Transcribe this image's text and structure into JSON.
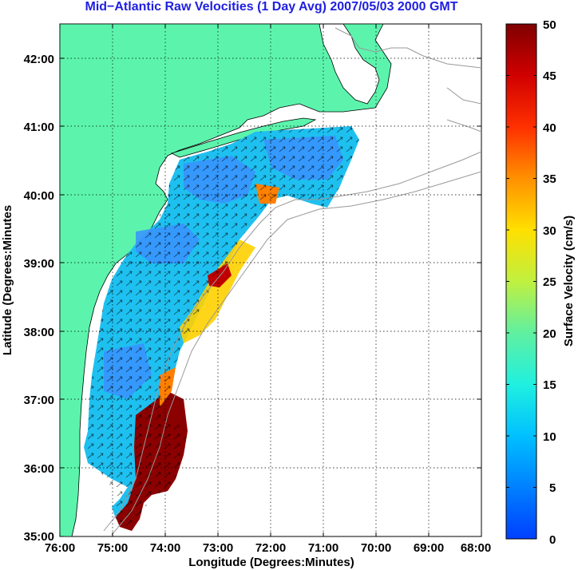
{
  "title": "Mid−Atlantic Raw Velocities (1 Day Avg) 2007/05/03 2000 GMT",
  "x_axis_label": "Longitude (Degrees:Minutes)",
  "y_axis_label": "Latitude (Degrees:Minutes",
  "x_ticks": [
    "76:00",
    "75:00",
    "74:00",
    "73:00",
    "72:00",
    "71:00",
    "70:00",
    "69:00",
    "68:00"
  ],
  "y_ticks": [
    "42:00",
    "41:00",
    "40:00",
    "39:00",
    "38:00",
    "37:00",
    "36:00",
    "35:00"
  ],
  "colorbar": {
    "label": "Surface Velocity (cm/s)",
    "ticks": [
      "50",
      "45",
      "40",
      "35",
      "30",
      "25",
      "20",
      "15",
      "10",
      "5",
      "0"
    ],
    "min": 0,
    "max": 50
  },
  "colors": {
    "land": "#5cf4ad",
    "ocean_low": "#2a8cff",
    "ocean_mid": "#18c8f0",
    "coast_line": "#000000",
    "bathymetry": "#999999",
    "high": "#8b0000",
    "title": "#1f1fe0"
  }
}
